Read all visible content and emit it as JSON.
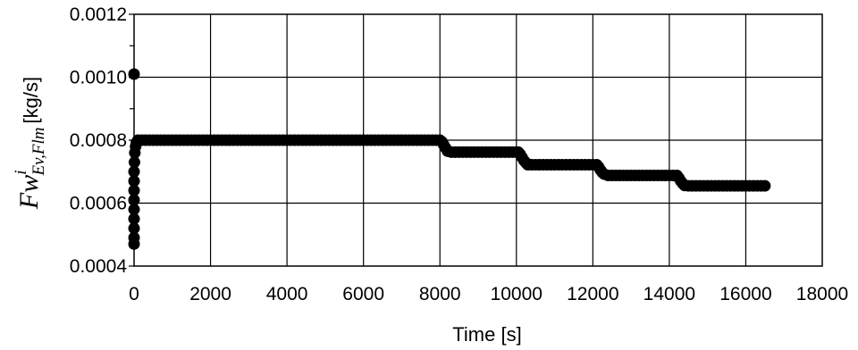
{
  "chart_data": {
    "type": "scatter",
    "xlabel": "Time [s]",
    "ylabel": {
      "main": "Fw",
      "superscript": "i",
      "subscript": "Ev,Flm",
      "unit": "[kg/s]"
    },
    "xlim": [
      0,
      18000
    ],
    "ylim": [
      0.0004,
      0.0012
    ],
    "x_ticks": [
      0,
      2000,
      4000,
      6000,
      8000,
      10000,
      12000,
      14000,
      16000,
      18000
    ],
    "y_ticks": [
      0.0004,
      0.0006,
      0.0008,
      0.001,
      0.0012
    ],
    "x_tick_labels": [
      "0",
      "2000",
      "4000",
      "6000",
      "8000",
      "10000",
      "12000",
      "14000",
      "16000",
      "18000"
    ],
    "y_tick_labels": [
      "0.0004",
      "0.0006",
      "0.0008",
      "0.0010",
      "0.0012"
    ],
    "grid": true,
    "marker_color": "#000000",
    "points": [
      [
        0,
        0.00047
      ],
      [
        0,
        0.00049
      ],
      [
        0,
        0.00052
      ],
      [
        0,
        0.00055
      ],
      [
        0,
        0.00058
      ],
      [
        0,
        0.00061
      ],
      [
        0,
        0.00064
      ],
      [
        0,
        0.00067
      ],
      [
        0,
        0.0007
      ],
      [
        10,
        0.00073
      ],
      [
        20,
        0.00076
      ],
      [
        40,
        0.00078
      ],
      [
        60,
        0.000792
      ],
      [
        0,
        0.00101
      ],
      [
        100,
        0.0008
      ],
      [
        200,
        0.0008
      ],
      [
        300,
        0.0008
      ],
      [
        400,
        0.0008
      ],
      [
        500,
        0.0008
      ],
      [
        600,
        0.0008
      ],
      [
        700,
        0.0008
      ],
      [
        800,
        0.0008
      ],
      [
        900,
        0.0008
      ],
      [
        1000,
        0.0008
      ],
      [
        1100,
        0.0008
      ],
      [
        1200,
        0.0008
      ],
      [
        1300,
        0.0008
      ],
      [
        1400,
        0.0008
      ],
      [
        1500,
        0.0008
      ],
      [
        1600,
        0.0008
      ],
      [
        1700,
        0.0008
      ],
      [
        1800,
        0.0008
      ],
      [
        1900,
        0.0008
      ],
      [
        2000,
        0.0008
      ],
      [
        2100,
        0.0008
      ],
      [
        2200,
        0.0008
      ],
      [
        2300,
        0.0008
      ],
      [
        2400,
        0.0008
      ],
      [
        2500,
        0.0008
      ],
      [
        2600,
        0.0008
      ],
      [
        2700,
        0.0008
      ],
      [
        2800,
        0.0008
      ],
      [
        2900,
        0.0008
      ],
      [
        3000,
        0.0008
      ],
      [
        3100,
        0.0008
      ],
      [
        3200,
        0.0008
      ],
      [
        3300,
        0.0008
      ],
      [
        3400,
        0.0008
      ],
      [
        3500,
        0.0008
      ],
      [
        3600,
        0.0008
      ],
      [
        3700,
        0.0008
      ],
      [
        3800,
        0.0008
      ],
      [
        3900,
        0.0008
      ],
      [
        4000,
        0.0008
      ],
      [
        4100,
        0.0008
      ],
      [
        4200,
        0.0008
      ],
      [
        4300,
        0.0008
      ],
      [
        4400,
        0.0008
      ],
      [
        4500,
        0.0008
      ],
      [
        4600,
        0.0008
      ],
      [
        4700,
        0.0008
      ],
      [
        4800,
        0.0008
      ],
      [
        4900,
        0.0008
      ],
      [
        5000,
        0.0008
      ],
      [
        5100,
        0.0008
      ],
      [
        5200,
        0.0008
      ],
      [
        5300,
        0.0008
      ],
      [
        5400,
        0.0008
      ],
      [
        5500,
        0.0008
      ],
      [
        5600,
        0.0008
      ],
      [
        5700,
        0.0008
      ],
      [
        5800,
        0.0008
      ],
      [
        5900,
        0.0008
      ],
      [
        6000,
        0.0008
      ],
      [
        6100,
        0.0008
      ],
      [
        6200,
        0.0008
      ],
      [
        6300,
        0.0008
      ],
      [
        6400,
        0.0008
      ],
      [
        6500,
        0.0008
      ],
      [
        6600,
        0.0008
      ],
      [
        6700,
        0.0008
      ],
      [
        6800,
        0.0008
      ],
      [
        6900,
        0.0008
      ],
      [
        7000,
        0.0008
      ],
      [
        7100,
        0.0008
      ],
      [
        7200,
        0.0008
      ],
      [
        7300,
        0.0008
      ],
      [
        7400,
        0.0008
      ],
      [
        7500,
        0.0008
      ],
      [
        7600,
        0.0008
      ],
      [
        7700,
        0.0008
      ],
      [
        7800,
        0.0008
      ],
      [
        7900,
        0.0008
      ],
      [
        8000,
        0.0008
      ],
      [
        8050,
        0.000795
      ],
      [
        8100,
        0.000785
      ],
      [
        8150,
        0.000775
      ],
      [
        8200,
        0.000765
      ],
      [
        8300,
        0.000762
      ],
      [
        8400,
        0.000762
      ],
      [
        8500,
        0.000762
      ],
      [
        8600,
        0.000762
      ],
      [
        8700,
        0.000762
      ],
      [
        8800,
        0.000762
      ],
      [
        8900,
        0.000762
      ],
      [
        9000,
        0.000762
      ],
      [
        9100,
        0.000762
      ],
      [
        9200,
        0.000762
      ],
      [
        9300,
        0.000762
      ],
      [
        9400,
        0.000762
      ],
      [
        9500,
        0.000762
      ],
      [
        9600,
        0.000762
      ],
      [
        9700,
        0.000762
      ],
      [
        9800,
        0.000762
      ],
      [
        9900,
        0.000762
      ],
      [
        10000,
        0.000762
      ],
      [
        10050,
        0.000762
      ],
      [
        10100,
        0.000755
      ],
      [
        10150,
        0.000745
      ],
      [
        10200,
        0.000735
      ],
      [
        10250,
        0.000728
      ],
      [
        10300,
        0.000722
      ],
      [
        10400,
        0.000722
      ],
      [
        10500,
        0.000722
      ],
      [
        10600,
        0.000722
      ],
      [
        10700,
        0.000722
      ],
      [
        10800,
        0.000722
      ],
      [
        10900,
        0.000722
      ],
      [
        11000,
        0.000722
      ],
      [
        11100,
        0.000722
      ],
      [
        11200,
        0.000722
      ],
      [
        11300,
        0.000722
      ],
      [
        11400,
        0.000722
      ],
      [
        11500,
        0.000722
      ],
      [
        11600,
        0.000722
      ],
      [
        11700,
        0.000722
      ],
      [
        11800,
        0.000722
      ],
      [
        11900,
        0.000722
      ],
      [
        12000,
        0.000722
      ],
      [
        12100,
        0.000722
      ],
      [
        12150,
        0.000715
      ],
      [
        12200,
        0.000705
      ],
      [
        12250,
        0.000697
      ],
      [
        12300,
        0.000692
      ],
      [
        12400,
        0.000688
      ],
      [
        12500,
        0.000688
      ],
      [
        12600,
        0.000688
      ],
      [
        12700,
        0.000688
      ],
      [
        12800,
        0.000688
      ],
      [
        12900,
        0.000688
      ],
      [
        13000,
        0.000688
      ],
      [
        13100,
        0.000688
      ],
      [
        13200,
        0.000688
      ],
      [
        13300,
        0.000688
      ],
      [
        13400,
        0.000688
      ],
      [
        13500,
        0.000688
      ],
      [
        13600,
        0.000688
      ],
      [
        13700,
        0.000688
      ],
      [
        13800,
        0.000688
      ],
      [
        13900,
        0.000688
      ],
      [
        14000,
        0.000688
      ],
      [
        14100,
        0.000688
      ],
      [
        14200,
        0.000688
      ],
      [
        14250,
        0.00068
      ],
      [
        14300,
        0.00067
      ],
      [
        14350,
        0.000662
      ],
      [
        14400,
        0.000656
      ],
      [
        14500,
        0.000655
      ],
      [
        14600,
        0.000655
      ],
      [
        14700,
        0.000655
      ],
      [
        14800,
        0.000655
      ],
      [
        14900,
        0.000655
      ],
      [
        15000,
        0.000655
      ],
      [
        15100,
        0.000655
      ],
      [
        15200,
        0.000655
      ],
      [
        15300,
        0.000655
      ],
      [
        15400,
        0.000655
      ],
      [
        15500,
        0.000655
      ],
      [
        15600,
        0.000655
      ],
      [
        15700,
        0.000655
      ],
      [
        15800,
        0.000655
      ],
      [
        15900,
        0.000655
      ],
      [
        16000,
        0.000655
      ],
      [
        16100,
        0.000655
      ],
      [
        16200,
        0.000655
      ],
      [
        16300,
        0.000655
      ],
      [
        16400,
        0.000655
      ],
      [
        16500,
        0.000655
      ]
    ]
  }
}
